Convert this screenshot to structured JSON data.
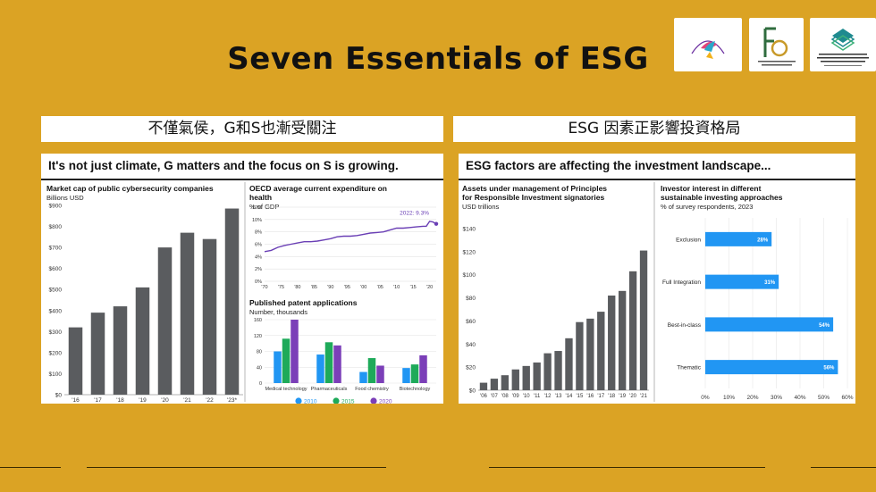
{
  "slide": {
    "title": "Seven Essentials of ESG",
    "left_caption": "不僅氣侯，G和S也漸受關注",
    "right_caption": "ESG 因素正影響投資格局"
  },
  "logos": [
    {
      "name": "Certified ESG Strategists",
      "sub": "CERTIFICATION"
    },
    {
      "name": "The Hong Kong Association of Financial Advisors (HKAFA)"
    },
    {
      "name": "PILOT GREEN AND SUSTAINABLE FINANCE CAPACITY BUILDING SUPPORT SCHEME"
    }
  ],
  "colors": {
    "background": "#DBA324",
    "bar_dark": "#5A5C5F",
    "line_purple": "#6A3FB5",
    "bar_blue": "#2196F3",
    "c2010": "#2196F3",
    "c2015": "#1EAA5A",
    "c2020": "#7B3FB8"
  },
  "left_panel": {
    "heading": "It's not just climate, G matters and the focus on S is growing."
  },
  "right_panel": {
    "heading": "ESG factors are affecting the investment landscape..."
  },
  "chart_data": [
    {
      "id": "cyber",
      "type": "bar",
      "title": "Market cap of public cybersecurity companies",
      "ylabel": "Billions USD",
      "categories": [
        "'16",
        "'17",
        "'18",
        "'19",
        "'20",
        "'21",
        "'22",
        "'23*"
      ],
      "values": [
        320,
        390,
        420,
        510,
        700,
        770,
        740,
        885
      ],
      "ylim": [
        0,
        900
      ],
      "yticks": [
        0,
        100,
        200,
        300,
        400,
        500,
        600,
        700,
        800,
        900
      ],
      "ytick_labels": [
        "$0",
        "$100",
        "$200",
        "$300",
        "$400",
        "$500",
        "$600",
        "$700",
        "$800",
        "$900"
      ],
      "grid": false
    },
    {
      "id": "health",
      "type": "line",
      "title": "OECD average current expenditure on health",
      "ylabel": "% of GDP",
      "x": [
        1970,
        1972,
        1974,
        1976,
        1978,
        1980,
        1982,
        1984,
        1986,
        1988,
        1990,
        1992,
        1994,
        1996,
        1998,
        2000,
        2002,
        2004,
        2006,
        2008,
        2010,
        2012,
        2014,
        2016,
        2018,
        2019,
        2020,
        2021,
        2022
      ],
      "values": [
        4.8,
        5.0,
        5.5,
        5.8,
        6.0,
        6.2,
        6.4,
        6.4,
        6.5,
        6.7,
        6.9,
        7.2,
        7.3,
        7.3,
        7.4,
        7.6,
        7.8,
        7.9,
        8.0,
        8.3,
        8.6,
        8.6,
        8.7,
        8.8,
        8.9,
        8.9,
        9.7,
        9.6,
        9.3
      ],
      "annotation": "2022: 9.3%",
      "xticks": [
        "'70",
        "'75",
        "'80",
        "'85",
        "'90",
        "'95",
        "'00",
        "'05",
        "'10",
        "'15",
        "'20"
      ],
      "xtick_values": [
        1970,
        1975,
        1980,
        1985,
        1990,
        1995,
        2000,
        2005,
        2010,
        2015,
        2020
      ],
      "yticks": [
        0,
        2,
        4,
        6,
        8,
        10,
        12
      ],
      "ytick_labels": [
        "0%",
        "2%",
        "4%",
        "6%",
        "8%",
        "10%",
        "12%"
      ],
      "ylim": [
        0,
        12
      ],
      "grid": true
    },
    {
      "id": "patents",
      "type": "bar",
      "title": "Published patent applications",
      "ylabel": "Number, thousands",
      "categories": [
        "Medical technology",
        "Pharmaceuticals",
        "Food chemistry",
        "Biotechnology"
      ],
      "series": [
        {
          "name": "2010",
          "values": [
            80,
            72,
            28,
            38
          ]
        },
        {
          "name": "2015",
          "values": [
            112,
            103,
            63,
            47
          ]
        },
        {
          "name": "2020",
          "values": [
            160,
            95,
            44,
            70
          ]
        }
      ],
      "ylim": [
        0,
        160
      ],
      "yticks": [
        0,
        40,
        80,
        120,
        160
      ],
      "legend_position": "bottom",
      "grid": true
    },
    {
      "id": "pri",
      "type": "bar",
      "title": "Assets under management of Principles for Responsible Investment signatories",
      "ylabel": "USD trillions",
      "categories": [
        "'06",
        "'07",
        "'08",
        "'09",
        "'10",
        "'11",
        "'12",
        "'13",
        "'14",
        "'15",
        "'16",
        "'17",
        "'18",
        "'19",
        "'20",
        "'21"
      ],
      "values": [
        6.5,
        10,
        13,
        18,
        21,
        24,
        32,
        34,
        45,
        59,
        62,
        68,
        82,
        86,
        103,
        121
      ],
      "ylim": [
        0,
        140
      ],
      "yticks": [
        0,
        20,
        40,
        60,
        80,
        100,
        120,
        140
      ],
      "ytick_labels": [
        "$0",
        "$20",
        "$40",
        "$60",
        "$80",
        "$100",
        "$120",
        "$140"
      ],
      "grid": false
    },
    {
      "id": "investor",
      "type": "bar",
      "orientation": "horizontal",
      "title": "Investor interest in different sustainable investing approaches",
      "ylabel": "% of survey respondents, 2023",
      "categories": [
        "Exclusion",
        "Full Integration",
        "Best-in-class",
        "Thematic"
      ],
      "values": [
        28,
        31,
        54,
        56
      ],
      "data_labels": [
        "28%",
        "31%",
        "54%",
        "56%"
      ],
      "xlim": [
        0,
        60
      ],
      "xticks": [
        0,
        10,
        20,
        30,
        40,
        50,
        60
      ],
      "xtick_labels": [
        "0%",
        "10%",
        "20%",
        "30%",
        "40%",
        "50%",
        "60%"
      ],
      "grid": true
    }
  ]
}
